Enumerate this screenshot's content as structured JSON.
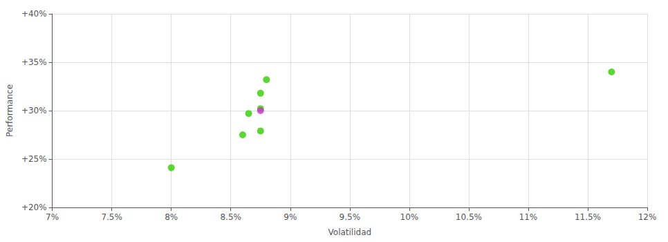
{
  "chart_data": {
    "type": "scatter",
    "xlabel": "Volatilidad",
    "ylabel": "Performance",
    "xlim": [
      0.07,
      0.12
    ],
    "ylim": [
      0.2,
      0.4
    ],
    "xticks": [
      {
        "value": 0.07,
        "label": "7%"
      },
      {
        "value": 0.075,
        "label": "7.5%"
      },
      {
        "value": 0.08,
        "label": "8%"
      },
      {
        "value": 0.085,
        "label": "8.5%"
      },
      {
        "value": 0.09,
        "label": "9%"
      },
      {
        "value": 0.095,
        "label": "9.5%"
      },
      {
        "value": 0.1,
        "label": "10%"
      },
      {
        "value": 0.105,
        "label": "10.5%"
      },
      {
        "value": 0.11,
        "label": "11%"
      },
      {
        "value": 0.115,
        "label": "11.5%"
      },
      {
        "value": 0.12,
        "label": "12%"
      }
    ],
    "yticks": [
      {
        "value": 0.2,
        "label": "+20%"
      },
      {
        "value": 0.25,
        "label": "+25%"
      },
      {
        "value": 0.3,
        "label": "+30%"
      },
      {
        "value": 0.35,
        "label": "+35%"
      },
      {
        "value": 0.4,
        "label": "+40%"
      }
    ],
    "grid": true,
    "series": [
      {
        "color": "#33cc00",
        "x": [
          0.088,
          0.0875,
          0.0875,
          0.0865,
          0.0875,
          0.086,
          0.08,
          0.117
        ],
        "values": [
          0.332,
          0.318,
          0.302,
          0.297,
          0.279,
          0.275,
          0.241,
          0.34
        ]
      },
      {
        "color": "#cc33cc",
        "x": [
          0.0875
        ],
        "values": [
          0.3
        ]
      }
    ]
  }
}
